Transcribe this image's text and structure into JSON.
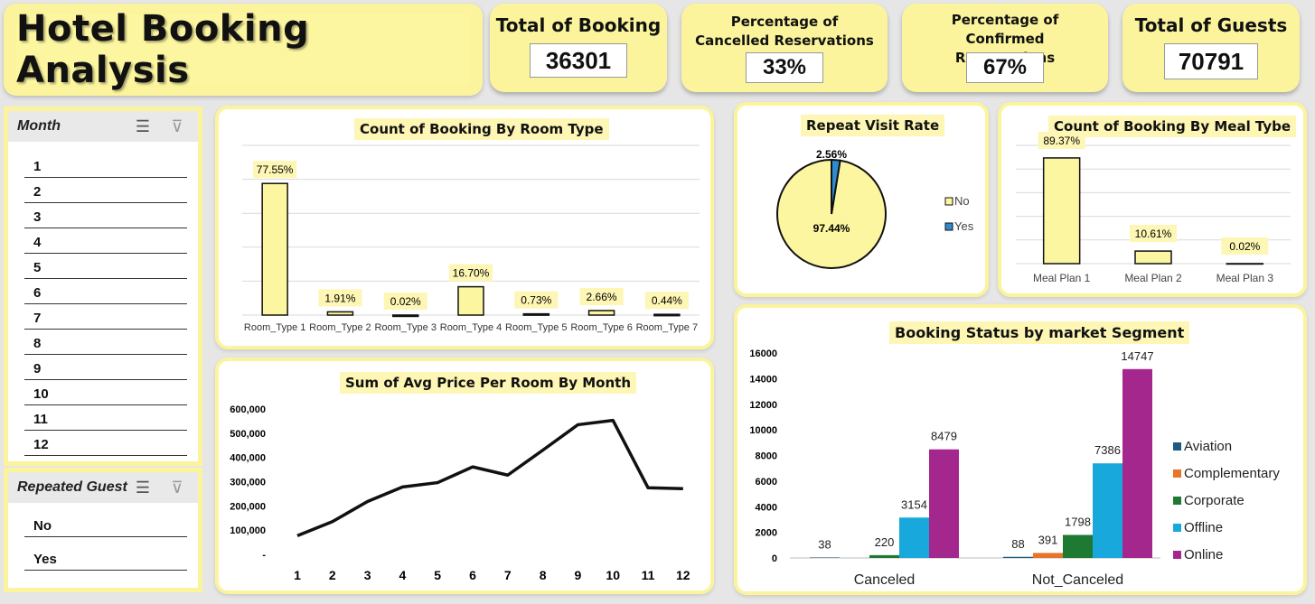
{
  "title": "Hotel Booking Analysis",
  "kpis": [
    {
      "label": "Total of Booking",
      "value": "36301"
    },
    {
      "label": "Percentage of Cancelled Reservations",
      "value": "33%"
    },
    {
      "label": "Percentage of Confirmed Reservations",
      "value": "67%"
    },
    {
      "label": "Total of Guests",
      "value": "70791"
    }
  ],
  "month_slicer": {
    "header": "Month",
    "items": [
      "1",
      "2",
      "3",
      "4",
      "5",
      "6",
      "7",
      "8",
      "9",
      "10",
      "11",
      "12"
    ]
  },
  "guest_slicer": {
    "header": "Repeated Guest",
    "items": [
      "No",
      "Yes"
    ]
  },
  "icons": {
    "multiselect": "multi-select-icon",
    "clear_filter": "clear-filter-icon"
  },
  "colors": {
    "accent": "#fbf49c",
    "bar_fill": "#fdf6a0",
    "yes_slice": "#2e8bd2",
    "aviation": "#1f5a82",
    "complementary": "#e8742a",
    "corporate": "#1e7a32",
    "offline": "#18a8dc",
    "online": "#a4278e"
  },
  "chart_data": [
    {
      "type": "bar",
      "title": "Count of Booking  By Room Type",
      "categories": [
        "Room_Type 1",
        "Room_Type 2",
        "Room_Type 3",
        "Room_Type 4",
        "Room_Type 5",
        "Room_Type 6",
        "Room_Type 7"
      ],
      "values": [
        77.55,
        1.91,
        0.02,
        16.7,
        0.73,
        2.66,
        0.44
      ],
      "labels": [
        "77.55%",
        "1.91%",
        "0.02%",
        "16.70%",
        "0.73%",
        "2.66%",
        "0.44%"
      ],
      "ylim": [
        0,
        100
      ]
    },
    {
      "type": "pie",
      "title": "Repeat Visit Rate",
      "categories": [
        "No",
        "Yes"
      ],
      "values": [
        97.44,
        2.56
      ],
      "labels": [
        "97.44%",
        "2.56%"
      ],
      "legend": "right"
    },
    {
      "type": "bar",
      "title": "Count of Booking  By Meal Tybe",
      "categories": [
        "Meal Plan 1",
        "Meal Plan 2",
        "Meal Plan 3"
      ],
      "values": [
        89.37,
        10.61,
        0.02
      ],
      "labels": [
        "89.37%",
        "10.61%",
        "0.02%"
      ],
      "ylim": [
        0,
        100
      ]
    },
    {
      "type": "line",
      "title": "Sum of Avg Price Per Room By Month",
      "x": [
        "1",
        "2",
        "3",
        "4",
        "5",
        "6",
        "7",
        "8",
        "9",
        "10",
        "11",
        "12"
      ],
      "values": [
        77000,
        135000,
        218000,
        278000,
        296000,
        361000,
        327000,
        430000,
        535000,
        553000,
        275000,
        271000
      ],
      "yticks": [
        "-",
        "100,000",
        "200,000",
        "300,000",
        "400,000",
        "500,000",
        "600,000"
      ],
      "ylim": [
        0,
        600000
      ]
    },
    {
      "type": "bar",
      "title": "Booking Status by market Segment",
      "categories": [
        "Canceled",
        "Not_Canceled"
      ],
      "series": [
        {
          "name": "Aviation",
          "values": [
            38,
            88
          ]
        },
        {
          "name": "Complementary",
          "values": [
            0,
            391
          ]
        },
        {
          "name": "Corporate",
          "values": [
            220,
            1798
          ]
        },
        {
          "name": "Offline",
          "values": [
            3154,
            7386
          ]
        },
        {
          "name": "Online",
          "values": [
            8479,
            14747
          ]
        }
      ],
      "yticks": [
        "0",
        "2000",
        "4000",
        "6000",
        "8000",
        "10000",
        "12000",
        "14000",
        "16000"
      ],
      "ylim": [
        0,
        16000
      ],
      "legend": "right"
    }
  ]
}
